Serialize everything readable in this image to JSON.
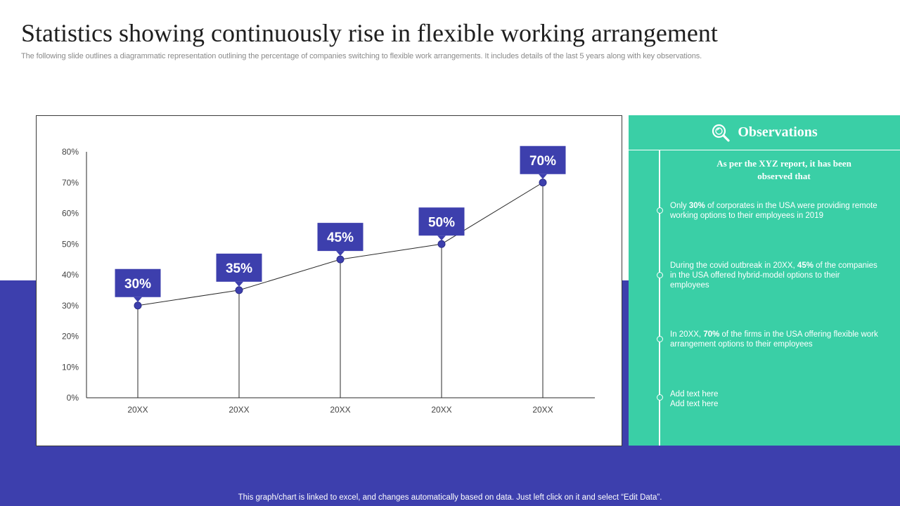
{
  "header": {
    "title": "Statistics showing continuously rise in flexible working arrangement",
    "subtitle": "The following slide outlines a diagrammatic representation outlining the percentage of companies switching to flexible work arrangements. It includes details of the last 5 years along with key observations."
  },
  "footer": {
    "note": "This graph/chart is linked to excel,  and changes automatically based on data. Just left click on it and select “Edit Data”."
  },
  "colors": {
    "accent": "#3d3fad",
    "observation_panel": "#3acfa6",
    "line": "#2a2a2a",
    "marker": "#3d3fad"
  },
  "chart_data": {
    "type": "line",
    "title": "",
    "xlabel": "",
    "ylabel": "",
    "categories": [
      "20XX",
      "20XX",
      "20XX",
      "20XX",
      "20XX"
    ],
    "values": [
      30,
      35,
      45,
      50,
      70
    ],
    "data_labels": [
      "30%",
      "35%",
      "45%",
      "50%",
      "70%"
    ],
    "yticks": [
      "0%",
      "10%",
      "20%",
      "30%",
      "40%",
      "50%",
      "60%",
      "70%",
      "80%"
    ],
    "ylim": [
      0,
      80
    ],
    "grid": false,
    "drop_lines": true
  },
  "observations": {
    "icon": "magnifier-icon",
    "title": "Observations",
    "intro": "As per the XYZ report, it has been observed that",
    "items": [
      {
        "pre": "Only ",
        "bold": "30%",
        "post": " of corporates in the USA were providing remote working options to their employees in 2019"
      },
      {
        "pre": "During the covid outbreak in 20XX, ",
        "bold": "45%",
        "post": " of the companies in the USA offered hybrid-model options to their employees"
      },
      {
        "pre": "In 20XX, ",
        "bold": "70%",
        "post": "  of the firms in the USA offering flexible work arrangement options to their employees"
      },
      {
        "pre": "Add text here",
        "bold": "",
        "post": "",
        "line2": "Add text here"
      }
    ]
  }
}
